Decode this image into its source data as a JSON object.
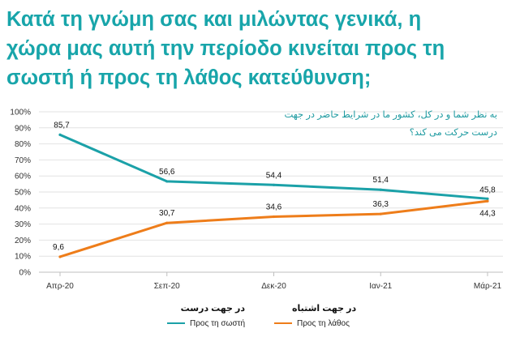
{
  "title": {
    "line1": "Κατά τη γνώμη σας και μιλώντας γενικά, η",
    "line2": "χώρα μας αυτή την περίοδο κινείται προς τη",
    "line3": "σωστή ή προς τη λάθος κατεύθυνση;"
  },
  "subtitle": {
    "line1": "به نظر شما و در کل، کشور ما در شرایط حاضر در جهت",
    "line2": "درست حرکت می کند؟"
  },
  "legend": {
    "right": {
      "alt_label": "در جهت درست",
      "label": "Προς τη σωστή"
    },
    "wrong": {
      "alt_label": "در جهت اشتباه",
      "label": "Προς τη λάθος"
    }
  },
  "colors": {
    "title": "#18a5aa",
    "series_right": "#1ba1a8",
    "series_wrong": "#ee7d1a",
    "gridline": "#e2e2e2",
    "axis": "#bfbfbf"
  },
  "chart_data": {
    "type": "line",
    "title": "Κατά τη γνώμη σας και μιλώντας γενικά, η χώρα μας αυτή την περίοδο κινείται προς τη σωστή ή προς τη λάθος κατεύθυνση;",
    "categories": [
      "Απρ-20",
      "Σεπ-20",
      "Δεκ-20",
      "Ιαν-21",
      "Μάρ-21"
    ],
    "ylim": [
      0,
      100
    ],
    "yticks": [
      "0%",
      "10%",
      "20%",
      "30%",
      "40%",
      "50%",
      "60%",
      "70%",
      "80%",
      "90%",
      "100%"
    ],
    "ytick_values": [
      0,
      10,
      20,
      30,
      40,
      50,
      60,
      70,
      80,
      90,
      100
    ],
    "grid": true,
    "legend_position": "bottom",
    "series": [
      {
        "name": "Προς τη σωστή",
        "values": [
          85.7,
          56.6,
          54.4,
          51.4,
          45.8
        ],
        "labels": [
          "85,7",
          "56,6",
          "54,4",
          "51,4",
          "45,8"
        ]
      },
      {
        "name": "Προς τη λάθος",
        "values": [
          9.6,
          30.7,
          34.6,
          36.3,
          44.3
        ],
        "labels": [
          "9,6",
          "30,7",
          "34,6",
          "36,3",
          "44,3"
        ]
      }
    ]
  }
}
